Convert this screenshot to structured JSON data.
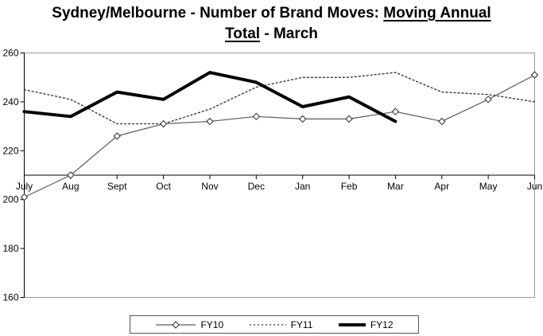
{
  "title_parts": {
    "line1_plain": "Sydney/Melbourne - Number of Brand Moves: ",
    "line1_underlined": "Moving Annual",
    "line2_underlined": "Total",
    "line2_plain": " - March"
  },
  "chart_data": {
    "type": "line",
    "title": "Sydney/Melbourne - Number of Brand Moves: Moving Annual Total - March",
    "categories": [
      "July",
      "Aug",
      "Sept",
      "Oct",
      "Nov",
      "Dec",
      "Jan",
      "Feb",
      "Mar",
      "Apr",
      "May",
      "Jun"
    ],
    "series": [
      {
        "name": "FY10",
        "values": [
          201,
          210,
          226,
          231,
          232,
          234,
          233,
          233,
          236,
          232,
          241,
          251
        ],
        "stroke": "#5a5a5a",
        "width": 1.2,
        "dash": "",
        "marker": "diamond",
        "marker_fill": "#ffffff",
        "marker_stroke": "#2b2b2b"
      },
      {
        "name": "FY11",
        "values": [
          245,
          241,
          231,
          231,
          237,
          246,
          250,
          250,
          252,
          244,
          243,
          240
        ],
        "stroke": "#2b2b2b",
        "width": 1.3,
        "dash": "2 3",
        "marker": "none"
      },
      {
        "name": "FY12",
        "values": [
          236,
          234,
          244,
          241,
          252,
          248,
          238,
          242,
          232,
          null,
          null,
          null
        ],
        "stroke": "#000000",
        "width": 4,
        "dash": "",
        "marker": "none"
      }
    ],
    "ylim": [
      160,
      260
    ],
    "yticks": [
      260,
      240,
      220,
      200,
      180,
      160
    ],
    "ytick_interval": 20,
    "x_axis_cross_value": 210,
    "grid": false,
    "legend_position": "bottom",
    "axis_color": "#000000",
    "plot_border_color": "#999999",
    "tick_font_size": 12
  }
}
